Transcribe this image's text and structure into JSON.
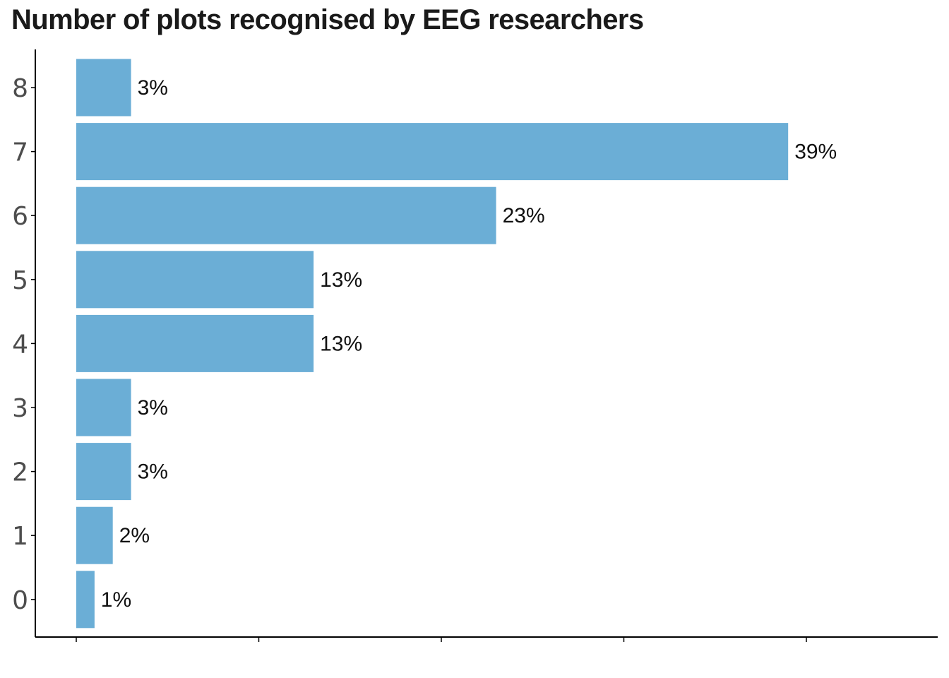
{
  "chart_data": {
    "type": "bar",
    "orientation": "horizontal",
    "title": "Number of plots recognised by EEG researchers",
    "xlabel": "",
    "ylabel": "",
    "categories": [
      "0",
      "1",
      "2",
      "3",
      "4",
      "5",
      "6",
      "7",
      "8"
    ],
    "values": [
      1,
      2,
      3,
      3,
      13,
      13,
      23,
      39,
      3
    ],
    "data_labels": [
      "1%",
      "2%",
      "3%",
      "3%",
      "13%",
      "13%",
      "23%",
      "39%",
      "3%"
    ],
    "xlim": [
      0,
      47
    ],
    "x_ticks": [
      0,
      10,
      20,
      30,
      40
    ],
    "x_tick_labels_shown": false,
    "grid": false,
    "bar_color": "#6baed6",
    "axis_color": "#000000"
  }
}
